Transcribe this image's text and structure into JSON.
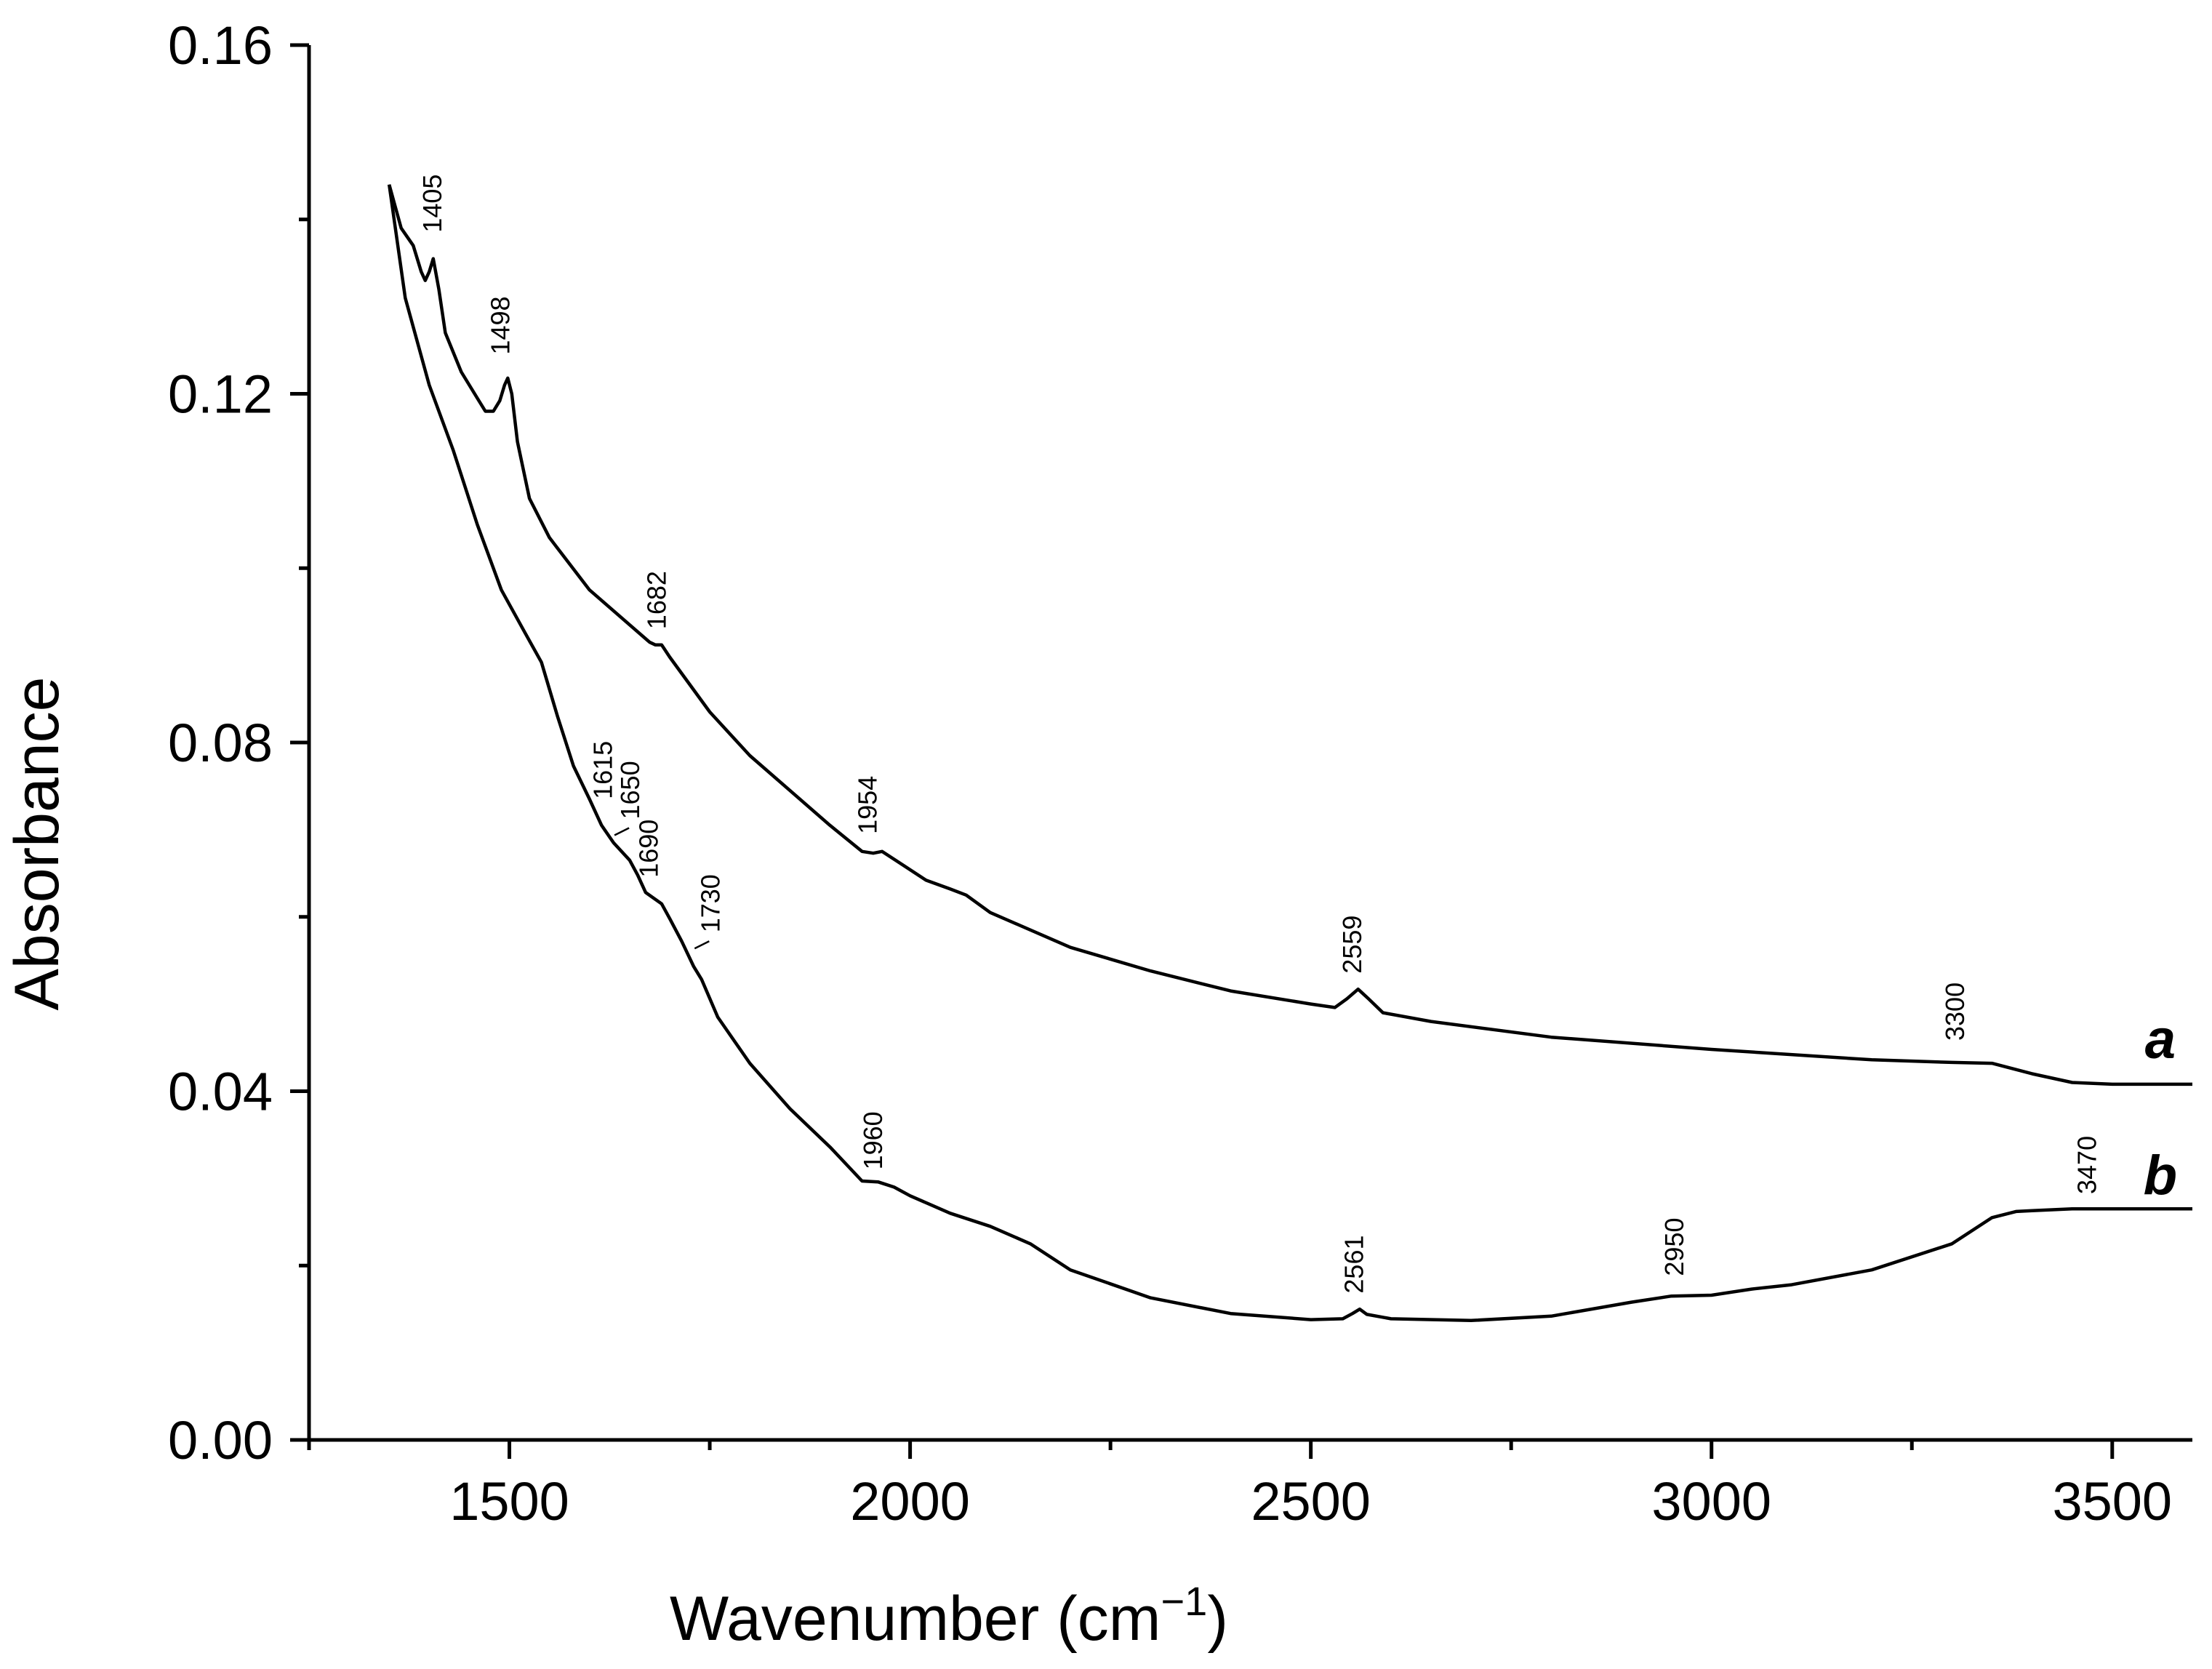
{
  "chart_data": {
    "type": "line",
    "xlabel": "Wavenumber (cm",
    "xlabel_sup": "−1",
    "xlabel_close": ")",
    "ylabel": "Absorbance",
    "xlim": [
      1250,
      3600
    ],
    "ylim": [
      0,
      0.16
    ],
    "x_ticks": [
      1500,
      2000,
      2500,
      3000,
      3500
    ],
    "x_minor_ticks": [
      1250,
      1750,
      2250,
      2750,
      3250
    ],
    "y_ticks": [
      0.0,
      0.04,
      0.08,
      0.12,
      0.16
    ],
    "y_tick_labels": [
      "0.00",
      "0.04",
      "0.08",
      "0.12",
      "0.16"
    ],
    "y_minor_ticks": [
      0.02,
      0.06,
      0.1,
      0.14
    ],
    "grid": false,
    "series": [
      {
        "name": "a",
        "x": [
          1350,
          1365,
          1380,
          1390,
          1395,
          1400,
          1405,
          1412,
          1420,
          1440,
          1460,
          1470,
          1480,
          1488,
          1494,
          1498,
          1503,
          1510,
          1525,
          1550,
          1600,
          1650,
          1675,
          1682,
          1690,
          1700,
          1750,
          1800,
          1850,
          1900,
          1940,
          1954,
          1965,
          1990,
          2020,
          2050,
          2070,
          2100,
          2200,
          2300,
          2400,
          2500,
          2530,
          2545,
          2559,
          2572,
          2590,
          2650,
          2800,
          3000,
          3200,
          3300,
          3350,
          3400,
          3450,
          3500,
          3600
        ],
        "y": [
          0.144,
          0.139,
          0.137,
          0.134,
          0.133,
          0.134,
          0.1355,
          0.132,
          0.127,
          0.1225,
          0.1195,
          0.118,
          0.118,
          0.1192,
          0.121,
          0.1218,
          0.12,
          0.1145,
          0.108,
          0.1035,
          0.0975,
          0.0935,
          0.0915,
          0.0912,
          0.0912,
          0.0898,
          0.0835,
          0.0785,
          0.0745,
          0.0705,
          0.0675,
          0.0673,
          0.0675,
          0.066,
          0.0642,
          0.0632,
          0.0625,
          0.0605,
          0.0565,
          0.0538,
          0.0515,
          0.05,
          0.0496,
          0.0506,
          0.0517,
          0.0506,
          0.049,
          0.048,
          0.0462,
          0.0448,
          0.0436,
          0.0433,
          0.0432,
          0.042,
          0.041,
          0.0408,
          0.0408
        ]
      },
      {
        "name": "b",
        "x": [
          1350,
          1370,
          1400,
          1430,
          1460,
          1490,
          1520,
          1540,
          1560,
          1580,
          1600,
          1615,
          1630,
          1650,
          1660,
          1670,
          1690,
          1700,
          1715,
          1730,
          1740,
          1760,
          1800,
          1850,
          1900,
          1940,
          1960,
          1980,
          2000,
          2050,
          2100,
          2150,
          2200,
          2300,
          2400,
          2500,
          2540,
          2552,
          2561,
          2570,
          2600,
          2700,
          2800,
          2900,
          2950,
          3000,
          3050,
          3100,
          3200,
          3300,
          3350,
          3380,
          3400,
          3450,
          3470,
          3500,
          3600
        ],
        "y": [
          0.144,
          0.131,
          0.121,
          0.1135,
          0.105,
          0.0975,
          0.0925,
          0.0892,
          0.083,
          0.0773,
          0.0735,
          0.0705,
          0.0685,
          0.0665,
          0.0648,
          0.0628,
          0.0615,
          0.0598,
          0.0572,
          0.0543,
          0.0528,
          0.0485,
          0.0432,
          0.038,
          0.0336,
          0.0297,
          0.0296,
          0.029,
          0.028,
          0.026,
          0.0245,
          0.0225,
          0.0195,
          0.0163,
          0.0145,
          0.0138,
          0.0139,
          0.0145,
          0.015,
          0.0144,
          0.0139,
          0.0137,
          0.0142,
          0.0158,
          0.0165,
          0.0166,
          0.0173,
          0.0178,
          0.0195,
          0.0225,
          0.0255,
          0.0262,
          0.0263,
          0.0265,
          0.0265,
          0.0265,
          0.0265
        ]
      }
    ],
    "series_tags": [
      {
        "name": "a",
        "label": "a",
        "x": 3560,
        "y": 0.0438
      },
      {
        "name": "b",
        "label": "b",
        "x": 3560,
        "y": 0.0282
      }
    ],
    "annotations": [
      {
        "text": "1405",
        "x": 1415,
        "y": 0.1385,
        "leader": false
      },
      {
        "text": "1498",
        "x": 1500,
        "y": 0.1245,
        "leader": false
      },
      {
        "text": "1682",
        "x": 1695,
        "y": 0.093,
        "leader": false
      },
      {
        "text": "1954",
        "x": 1958,
        "y": 0.0695,
        "leader": false
      },
      {
        "text": "2559",
        "x": 2563,
        "y": 0.0535,
        "leader": false
      },
      {
        "text": "3300",
        "x": 3315,
        "y": 0.0458,
        "leader": false
      },
      {
        "text": "1615",
        "x": 1628,
        "y": 0.0735,
        "leader": false
      },
      {
        "text": "1650",
        "x": 1662,
        "y": 0.0712,
        "leader": true
      },
      {
        "text": "1690",
        "x": 1685,
        "y": 0.0645,
        "leader": false
      },
      {
        "text": "1730",
        "x": 1762,
        "y": 0.0582,
        "leader": true
      },
      {
        "text": "1960",
        "x": 1965,
        "y": 0.031,
        "leader": false
      },
      {
        "text": "2561",
        "x": 2565,
        "y": 0.0168,
        "leader": false
      },
      {
        "text": "2950",
        "x": 2965,
        "y": 0.0188,
        "leader": false
      },
      {
        "text": "3470",
        "x": 3480,
        "y": 0.0282,
        "leader": false
      }
    ]
  }
}
